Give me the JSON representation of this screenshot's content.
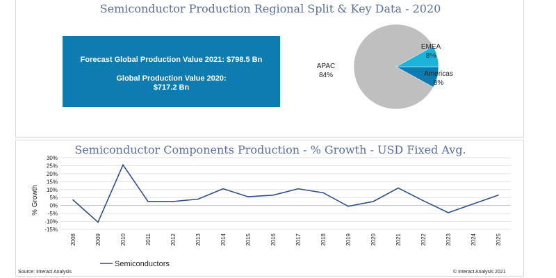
{
  "top_panel": {
    "title": "Semiconductor Production Regional Split & Key Data - 2020",
    "info_box": {
      "line1": "Forecast Global Production Value 2021: $798.5 Bn",
      "line2": "Global Production Value 2020:",
      "line3": "$717.2 Bn"
    }
  },
  "colors": {
    "title": "#5a6f9e",
    "info_box_bg": "#0e7cb0",
    "line": "#2f4f8a",
    "apac": "#bfbfbf",
    "emea": "#0e7cb0",
    "americas": "#1bb3d9"
  },
  "chart_data": [
    {
      "type": "pie",
      "title": "",
      "slices": [
        {
          "label": "APAC",
          "value_label": "84%",
          "value": 84
        },
        {
          "label": "EMEA",
          "value_label": "8%",
          "value": 8
        },
        {
          "label": "Americas",
          "value_label": "8%",
          "value": 8
        }
      ]
    },
    {
      "type": "line",
      "title": "Semiconductor Components Production - % Growth - USD Fixed Avg.",
      "xlabel": "",
      "ylabel": "% Growth",
      "x": [
        "2008",
        "2009",
        "2010",
        "2011",
        "2012",
        "2013",
        "2014",
        "2015",
        "2016",
        "2017",
        "2018",
        "2019",
        "2020",
        "2021",
        "2022",
        "2023",
        "2024",
        "2025"
      ],
      "series": [
        {
          "name": "Semiconductors",
          "values": [
            3.5,
            -10.5,
            25.5,
            2.5,
            2.5,
            4.0,
            10.5,
            5.5,
            6.5,
            10.5,
            8.0,
            -0.5,
            2.5,
            11.0,
            3.0,
            -4.5,
            1.0,
            6.5
          ]
        }
      ],
      "yticks": [
        "30%",
        "25%",
        "20%",
        "15%",
        "10%",
        "5%",
        "0%",
        "-5%",
        "-10%",
        "-15%"
      ],
      "ylim": [
        -15,
        30
      ],
      "grid": true,
      "legend": "bottom-left"
    }
  ],
  "footer": {
    "source": "Source: Interact Analysis",
    "copyright": "© Interact Analysis 2021"
  }
}
